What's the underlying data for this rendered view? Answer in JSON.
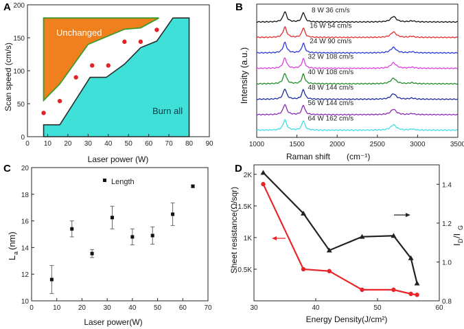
{
  "chart_data": [
    {
      "panel": "A",
      "type": "area",
      "xlabel": "Laser power (W)",
      "ylabel": "Scan speed  (cm/s)",
      "xlim": [
        0,
        90
      ],
      "ylim": [
        0,
        200
      ],
      "xticks": [
        "0",
        "10",
        "20",
        "30",
        "40",
        "50",
        "60",
        "70",
        "80",
        "90"
      ],
      "yticks": [
        "0",
        "50",
        "100",
        "150",
        "200"
      ],
      "unchanged_label": "Unchanged",
      "burn_label": "Burn all",
      "unchanged_color": "#f07f1d",
      "burn_color": "#3fe0d8",
      "unchanged_region": [
        [
          8,
          55
        ],
        [
          8,
          180
        ],
        [
          65,
          180
        ],
        [
          56,
          165
        ],
        [
          48,
          163
        ],
        [
          30,
          140
        ],
        [
          16,
          80
        ],
        [
          8,
          55
        ]
      ],
      "burn_region": [
        [
          8,
          0
        ],
        [
          8,
          18
        ],
        [
          16,
          18
        ],
        [
          31,
          90
        ],
        [
          39,
          90
        ],
        [
          48,
          110
        ],
        [
          56,
          135
        ],
        [
          64,
          145
        ],
        [
          72,
          180
        ],
        [
          80,
          180
        ],
        [
          80,
          0
        ]
      ],
      "points": [
        [
          8,
          36
        ],
        [
          16,
          54
        ],
        [
          24,
          90
        ],
        [
          32,
          108
        ],
        [
          40,
          108
        ],
        [
          48,
          144
        ],
        [
          56,
          144
        ],
        [
          64,
          162
        ]
      ],
      "point_color": "#e0252a"
    },
    {
      "panel": "B",
      "type": "line",
      "xlabel": "Raman shift",
      "xlabel_unit": "(cm⁻¹)",
      "ylabel": "Intensity  (a.u.)",
      "xlim": [
        1000,
        3500
      ],
      "xticks": [
        "1000",
        "1500",
        "2000",
        "2500",
        "3000",
        "3500"
      ],
      "series": [
        {
          "name": "8 W 36 cm/s",
          "color": "#111111"
        },
        {
          "name": "16 W 54 cm/s",
          "color": "#e52b2b"
        },
        {
          "name": "24 W 90 cm/s",
          "color": "#2d37d6"
        },
        {
          "name": "32 W 108 cm/s",
          "color": "#e03fe0"
        },
        {
          "name": "40 W 108 cm/s",
          "color": "#1f8c26"
        },
        {
          "name": "48 W 144 cm/s",
          "color": "#1c2a9e"
        },
        {
          "name": "56 W 144 cm/s",
          "color": "#8a2ab8"
        },
        {
          "name": "64 W 162 cm/s",
          "color": "#3fdde8"
        }
      ],
      "peaks": [
        1350,
        1580,
        2700
      ]
    },
    {
      "panel": "C",
      "type": "scatter",
      "xlabel": "Laser power(W)",
      "ylabel": "L",
      "ylabel_sub": "a",
      "ylabel_tail": "(nm)",
      "legend": "Length",
      "xlim": [
        0,
        70
      ],
      "ylim": [
        10,
        20
      ],
      "xticks": [
        "0",
        "10",
        "20",
        "30",
        "40",
        "50",
        "60",
        "70"
      ],
      "yticks": [
        "10",
        "12",
        "14",
        "16",
        "18",
        "20"
      ],
      "x": [
        8,
        16,
        24,
        32,
        40,
        48,
        56,
        64
      ],
      "y": [
        11.6,
        15.4,
        13.55,
        16.25,
        14.8,
        14.9,
        16.5,
        18.6
      ],
      "err": [
        1.05,
        0.6,
        0.3,
        0.85,
        0.6,
        0.65,
        0.85,
        0.1
      ]
    },
    {
      "panel": "D",
      "type": "line",
      "xlabel": "Energy Density(J/cm²)",
      "ylabel": "Sheet resistance(Ω/sqr)",
      "ylabel_right": "I",
      "ylabel_right_sub1": "D",
      "ylabel_right_mid": "/I",
      "ylabel_right_sub2": "G",
      "xlim": [
        30,
        60
      ],
      "ylim_left": [
        0,
        2150
      ],
      "ylim_right": [
        0.8,
        1.5
      ],
      "xticks": [
        "30",
        "40",
        "50",
        "60"
      ],
      "yticks_left": [
        "0.5K",
        "1K",
        "1.5K",
        "2K"
      ],
      "yticks_left_values": [
        500,
        1000,
        1500,
        2000
      ],
      "yticks_right": [
        "0.8",
        "1.0",
        "1.2",
        "1.4"
      ],
      "yticks_right_values": [
        0.8,
        1.0,
        1.2,
        1.4
      ],
      "series": [
        {
          "name": "Sheet resistance",
          "color": "#e8262a",
          "axis": "left",
          "x": [
            31.5,
            38,
            42.2,
            47.5,
            52.6,
            55.4,
            56.4
          ],
          "y": [
            1845,
            500,
            470,
            175,
            175,
            110,
            95
          ]
        },
        {
          "name": "ID/IG",
          "color": "#222222",
          "axis": "right",
          "x": [
            31.5,
            38,
            42.2,
            47.5,
            52.6,
            55.4,
            56.4
          ],
          "y": [
            1.46,
            1.25,
            1.06,
            1.13,
            1.135,
            1.02,
            0.89
          ]
        }
      ]
    }
  ]
}
